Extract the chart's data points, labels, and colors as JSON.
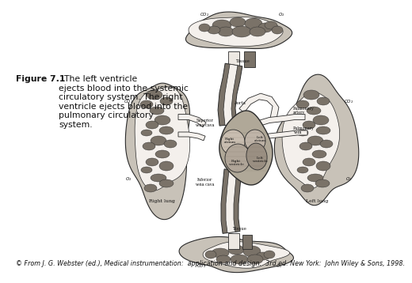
{
  "background_color": "#ffffff",
  "figure_title_bold": "Figure 7.1",
  "figure_caption_rest": "  The left ventricle\nejects blood into the systemic\ncirculatory system. The right\nventricle ejects blood into the\npulmonary circulatory\nsystem.",
  "copyright_text": "© From J. G. Webster (ed.), Medical instrumentation:  application and design.  3rd ed. New York:  John Wiley & Sons, 1998.",
  "organ_face": "#c8c2b8",
  "organ_face2": "#b8b0a4",
  "organ_edge": "#2a2a2a",
  "dark_spot": "#7a7268",
  "white_fill": "#f4f0ec",
  "vessel_fill": "#ede8e2",
  "heart_face": "#b0a898",
  "heart_dark": "#8a8078",
  "caption_fontsize": 7.8,
  "copyright_fontsize": 5.8
}
